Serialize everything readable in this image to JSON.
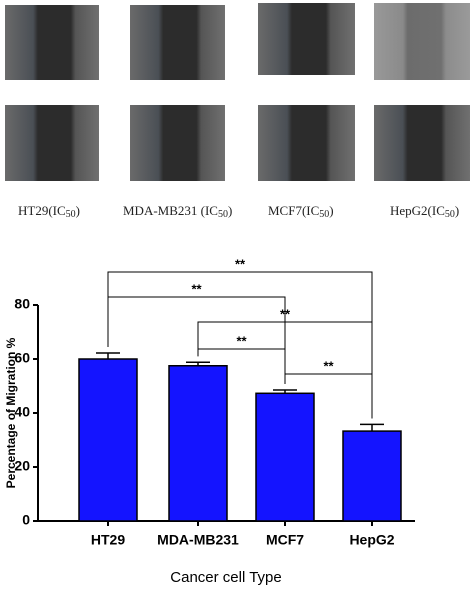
{
  "panel_labels": [
    {
      "main": "HT29(IC",
      "subscript": "50",
      "end": ")"
    },
    {
      "main": "MDA-MB231 (IC",
      "subscript": "50",
      "end": ")"
    },
    {
      "main": "MCF7(IC",
      "subscript": "50",
      "end": ")"
    },
    {
      "main": "HepG2(IC",
      "subscript": "50",
      "end": ")"
    }
  ],
  "chart_data": {
    "type": "bar",
    "categories": [
      "HT29",
      "MDA-MB231",
      "MCF7",
      "HepG2"
    ],
    "values": [
      60,
      57.5,
      47.3,
      33.3
    ],
    "errors": [
      2.2,
      1.3,
      1.2,
      2.5
    ],
    "color": "#1414ff",
    "ylim": [
      0,
      80
    ],
    "yticks": [
      0,
      20,
      40,
      60,
      80
    ],
    "ylabel": "Percentage of Migration %",
    "xlabel": "Cancer cell Type",
    "significance": [
      {
        "groups": [
          "HT29",
          "HepG2"
        ],
        "label": "**"
      },
      {
        "groups": [
          "HT29",
          "MCF7"
        ],
        "label": "**"
      },
      {
        "groups": [
          "MDA-MB231",
          "HepG2"
        ],
        "label": "**"
      },
      {
        "groups": [
          "MDA-MB231",
          "MCF7"
        ],
        "label": "**"
      },
      {
        "groups": [
          "MCF7",
          "HepG2"
        ],
        "label": "**"
      }
    ]
  }
}
